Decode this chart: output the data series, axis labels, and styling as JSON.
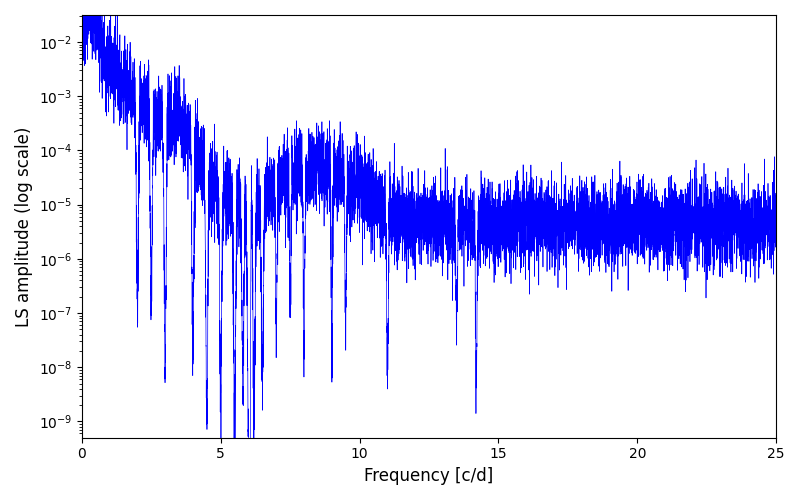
{
  "xlabel": "Frequency [c/d]",
  "ylabel": "LS amplitude (log scale)",
  "line_color": "#0000ff",
  "background_color": "#ffffff",
  "xlim": [
    0,
    25
  ],
  "ylim_log_min": -9.3,
  "ylim_log_max": -1.5,
  "freq_max": 25.0,
  "n_points": 8000,
  "seed": 12345
}
